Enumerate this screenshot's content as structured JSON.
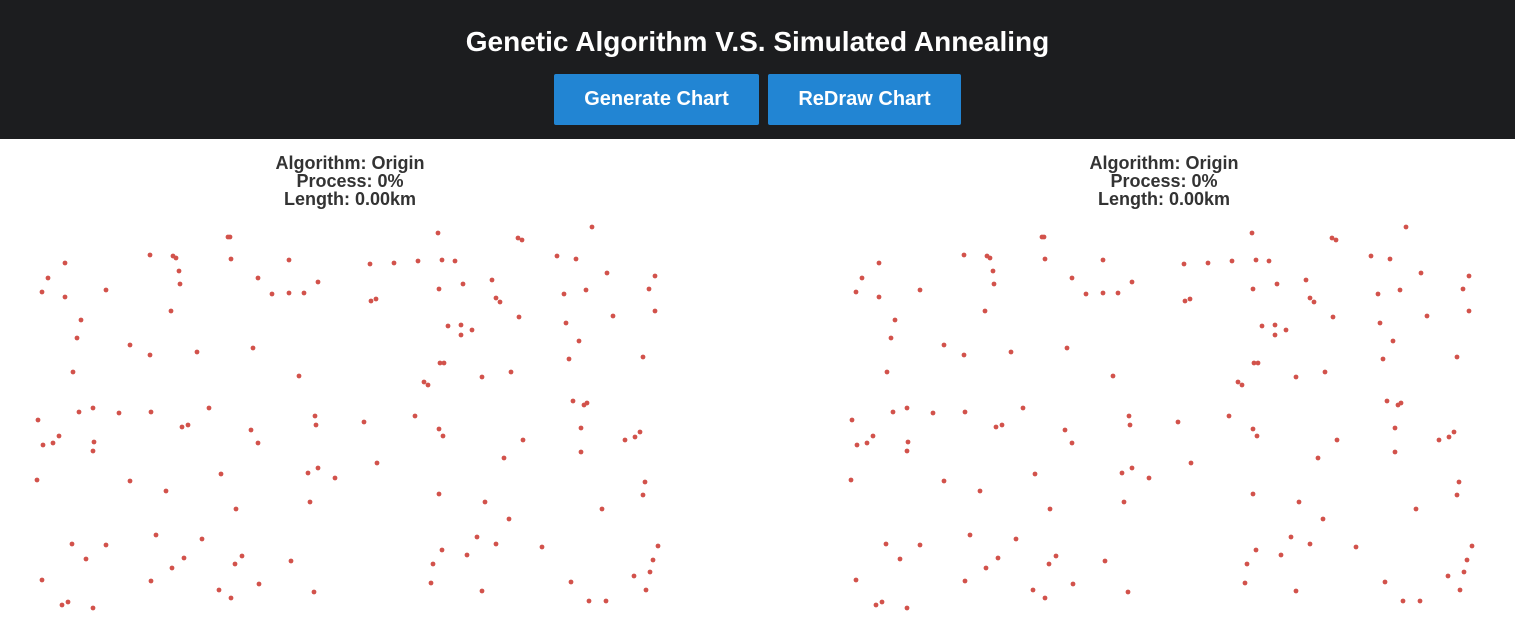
{
  "header": {
    "title": "Genetic Algorithm V.S. Simulated Annealing",
    "generate_label": "Generate Chart",
    "redraw_label": "ReDraw Chart"
  },
  "colors": {
    "header_bg": "#1c1d1f",
    "button_bg": "#2285d3",
    "point_color": "#d2524b",
    "info_text": "#333333"
  },
  "panels": [
    {
      "algorithm_label": "Algorithm: Origin",
      "process_label": "Process: 0%",
      "length_label": "Length: 0.00km"
    },
    {
      "algorithm_label": "Algorithm: Origin",
      "process_label": "Process: 0%",
      "length_label": "Length: 0.00km"
    }
  ],
  "chart_data": {
    "type": "scatter",
    "points": [
      [
        592,
        228
      ],
      [
        438,
        234
      ],
      [
        228,
        238
      ],
      [
        230,
        238
      ],
      [
        518,
        239
      ],
      [
        522,
        241
      ],
      [
        150,
        256
      ],
      [
        173,
        257
      ],
      [
        176,
        259
      ],
      [
        231,
        260
      ],
      [
        289,
        261
      ],
      [
        557,
        257
      ],
      [
        576,
        260
      ],
      [
        65,
        264
      ],
      [
        370,
        265
      ],
      [
        394,
        264
      ],
      [
        418,
        262
      ],
      [
        442,
        261
      ],
      [
        455,
        262
      ],
      [
        179,
        272
      ],
      [
        607,
        274
      ],
      [
        655,
        277
      ],
      [
        48,
        279
      ],
      [
        258,
        279
      ],
      [
        492,
        281
      ],
      [
        180,
        285
      ],
      [
        318,
        283
      ],
      [
        463,
        285
      ],
      [
        106,
        291
      ],
      [
        439,
        290
      ],
      [
        586,
        291
      ],
      [
        649,
        290
      ],
      [
        42,
        293
      ],
      [
        272,
        295
      ],
      [
        289,
        294
      ],
      [
        304,
        294
      ],
      [
        65,
        298
      ],
      [
        376,
        300
      ],
      [
        371,
        302
      ],
      [
        496,
        299
      ],
      [
        500,
        303
      ],
      [
        564,
        295
      ],
      [
        171,
        312
      ],
      [
        655,
        312
      ],
      [
        81,
        321
      ],
      [
        519,
        318
      ],
      [
        613,
        317
      ],
      [
        448,
        327
      ],
      [
        461,
        326
      ],
      [
        472,
        331
      ],
      [
        566,
        324
      ],
      [
        77,
        339
      ],
      [
        130,
        346
      ],
      [
        461,
        336
      ],
      [
        579,
        342
      ],
      [
        253,
        349
      ],
      [
        150,
        356
      ],
      [
        197,
        353
      ],
      [
        569,
        360
      ],
      [
        643,
        358
      ],
      [
        440,
        364
      ],
      [
        444,
        364
      ],
      [
        73,
        373
      ],
      [
        299,
        377
      ],
      [
        482,
        378
      ],
      [
        511,
        373
      ],
      [
        424,
        383
      ],
      [
        428,
        386
      ],
      [
        573,
        402
      ],
      [
        584,
        406
      ],
      [
        587,
        404
      ],
      [
        93,
        409
      ],
      [
        209,
        409
      ],
      [
        79,
        413
      ],
      [
        119,
        414
      ],
      [
        151,
        413
      ],
      [
        315,
        417
      ],
      [
        415,
        417
      ],
      [
        38,
        421
      ],
      [
        188,
        426
      ],
      [
        182,
        428
      ],
      [
        316,
        426
      ],
      [
        364,
        423
      ],
      [
        439,
        430
      ],
      [
        581,
        429
      ],
      [
        251,
        431
      ],
      [
        443,
        437
      ],
      [
        59,
        437
      ],
      [
        94,
        443
      ],
      [
        43,
        446
      ],
      [
        53,
        444
      ],
      [
        258,
        444
      ],
      [
        523,
        441
      ],
      [
        625,
        441
      ],
      [
        635,
        438
      ],
      [
        640,
        433
      ],
      [
        93,
        452
      ],
      [
        581,
        453
      ],
      [
        377,
        464
      ],
      [
        504,
        459
      ],
      [
        318,
        469
      ],
      [
        308,
        474
      ],
      [
        221,
        475
      ],
      [
        335,
        479
      ],
      [
        37,
        481
      ],
      [
        130,
        482
      ],
      [
        645,
        483
      ],
      [
        166,
        492
      ],
      [
        439,
        495
      ],
      [
        643,
        496
      ],
      [
        310,
        503
      ],
      [
        485,
        503
      ],
      [
        236,
        510
      ],
      [
        602,
        510
      ],
      [
        509,
        520
      ],
      [
        156,
        536
      ],
      [
        477,
        538
      ],
      [
        202,
        540
      ],
      [
        72,
        545
      ],
      [
        106,
        546
      ],
      [
        496,
        545
      ],
      [
        542,
        548
      ],
      [
        658,
        547
      ],
      [
        184,
        559
      ],
      [
        242,
        557
      ],
      [
        86,
        560
      ],
      [
        291,
        562
      ],
      [
        442,
        551
      ],
      [
        467,
        556
      ],
      [
        653,
        561
      ],
      [
        235,
        565
      ],
      [
        433,
        565
      ],
      [
        172,
        569
      ],
      [
        650,
        573
      ],
      [
        42,
        581
      ],
      [
        151,
        582
      ],
      [
        259,
        585
      ],
      [
        431,
        584
      ],
      [
        571,
        583
      ],
      [
        634,
        577
      ],
      [
        219,
        591
      ],
      [
        314,
        593
      ],
      [
        482,
        592
      ],
      [
        646,
        591
      ],
      [
        231,
        599
      ],
      [
        68,
        603
      ],
      [
        62,
        606
      ],
      [
        93,
        609
      ],
      [
        589,
        602
      ],
      [
        606,
        602
      ]
    ],
    "xlim": [
      0,
      700
    ],
    "ylim": [
      220,
      620
    ],
    "marker_color": "#d2524b"
  }
}
